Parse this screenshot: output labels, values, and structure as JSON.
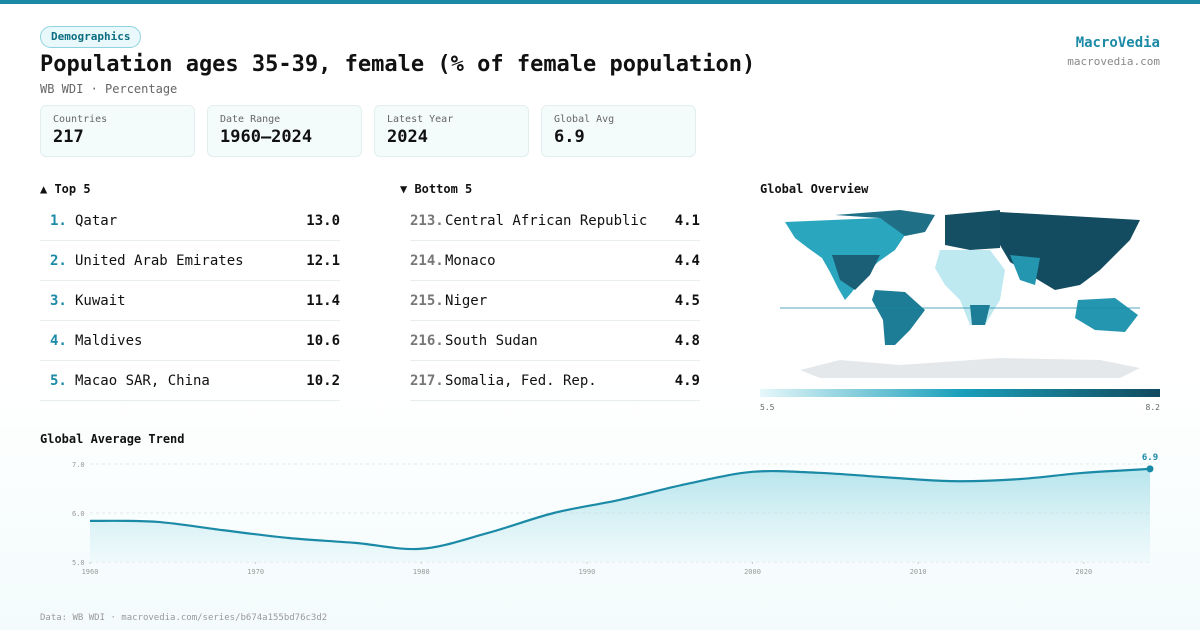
{
  "header": {
    "badge": "Demographics",
    "title": "Population ages 35-39, female (% of female population)",
    "subtitle": "WB WDI · Percentage",
    "brand": "MacroVedia",
    "site": "macrovedia.com"
  },
  "stats": [
    {
      "label": "Countries",
      "value": "217"
    },
    {
      "label": "Date Range",
      "value": "1960–2024"
    },
    {
      "label": "Latest Year",
      "value": "2024"
    },
    {
      "label": "Global Avg",
      "value": "6.9"
    }
  ],
  "top5": {
    "title": "▲ Top 5",
    "rows": [
      {
        "rank": "1.",
        "name": "Qatar",
        "value": "13.0"
      },
      {
        "rank": "2.",
        "name": "United Arab Emirates",
        "value": "12.1"
      },
      {
        "rank": "3.",
        "name": "Kuwait",
        "value": "11.4"
      },
      {
        "rank": "4.",
        "name": "Maldives",
        "value": "10.6"
      },
      {
        "rank": "5.",
        "name": "Macao SAR, China",
        "value": "10.2"
      }
    ]
  },
  "bottom5": {
    "title": "▼ Bottom 5",
    "rows": [
      {
        "rank": "213.",
        "name": "Central African Republic",
        "value": "4.1"
      },
      {
        "rank": "214.",
        "name": "Monaco",
        "value": "4.4"
      },
      {
        "rank": "215.",
        "name": "Niger",
        "value": "4.5"
      },
      {
        "rank": "216.",
        "name": "South Sudan",
        "value": "4.8"
      },
      {
        "rank": "217.",
        "name": "Somalia, Fed. Rep.",
        "value": "4.9"
      }
    ]
  },
  "map": {
    "title": "Global Overview",
    "scale_min": "5.5",
    "scale_max": "8.2"
  },
  "chart_data": {
    "type": "area",
    "title": "Global Average Trend",
    "color": "#1b8aa6",
    "x": [
      1960,
      1964,
      1968,
      1972,
      1976,
      1980,
      1984,
      1988,
      1992,
      1996,
      2000,
      2004,
      2008,
      2012,
      2016,
      2020,
      2024
    ],
    "values": [
      5.84,
      5.82,
      5.65,
      5.49,
      5.39,
      5.27,
      5.59,
      6.0,
      6.27,
      6.59,
      6.84,
      6.82,
      6.73,
      6.65,
      6.69,
      6.82,
      6.9
    ],
    "xlim": [
      1960,
      2024
    ],
    "ylim": [
      5,
      7
    ],
    "xticks": [
      1960,
      1970,
      1980,
      1990,
      2000,
      2010,
      2020
    ],
    "yticks": [
      {
        "value": 5,
        "label": "5.0"
      },
      {
        "value": 6,
        "label": "6.0"
      },
      {
        "value": 7,
        "label": "7.0"
      }
    ],
    "grid": true
  },
  "footer": "Data: WB WDI · macrovedia.com/series/b674a155bd76c3d2"
}
